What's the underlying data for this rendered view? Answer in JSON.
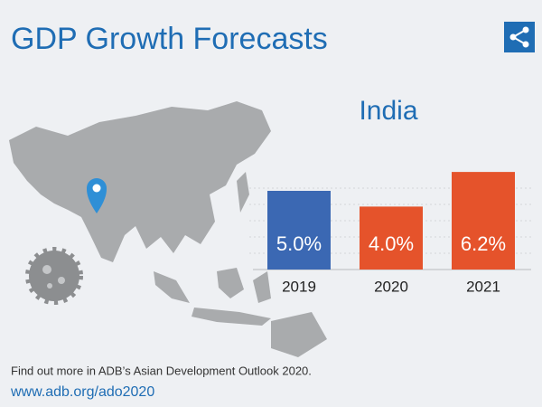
{
  "chart_data": {
    "type": "bar",
    "title": "GDP Growth Forecasts",
    "subtitle": "India",
    "categories": [
      "2019",
      "2020",
      "2021"
    ],
    "values": [
      5.0,
      4.0,
      6.2
    ],
    "value_labels": [
      "5.0%",
      "4.0%",
      "6.2%"
    ],
    "colors": [
      "#3b68b3",
      "#e5532b",
      "#e5532b"
    ]
  },
  "footer": {
    "note": "Find out more in ADB’s Asian Development Outlook 2020.",
    "link": "www.adb.org/ado2020"
  }
}
